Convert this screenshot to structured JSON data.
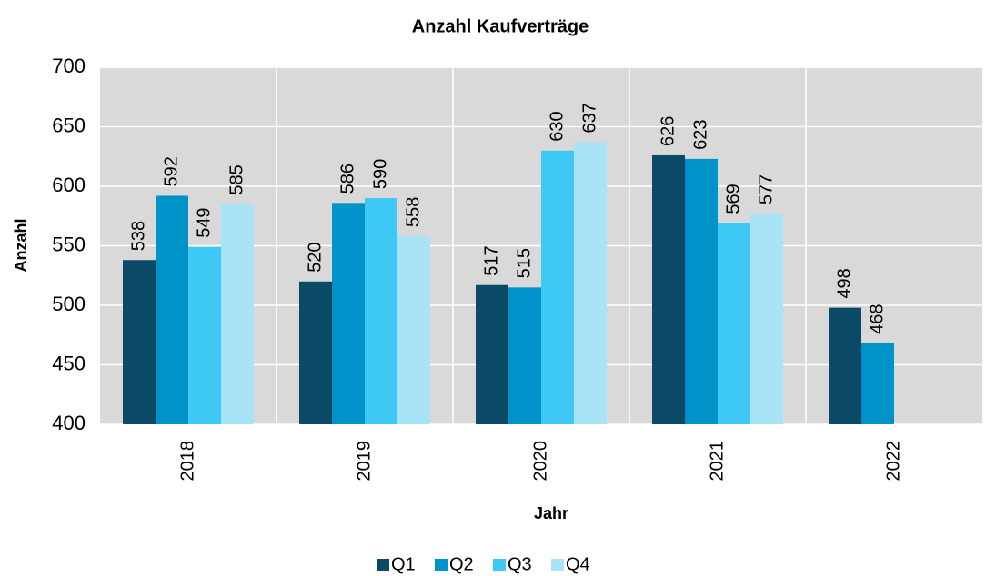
{
  "chart_data": {
    "type": "bar",
    "title": "Anzahl Kaufverträge",
    "x_label": "Jahr",
    "y_label": "Anzahl",
    "categories": [
      "2018",
      "2019",
      "2020",
      "2021",
      "2022"
    ],
    "series": [
      {
        "name": "Q1",
        "color": "#0b4a67",
        "values": [
          538,
          520,
          517,
          626,
          498
        ]
      },
      {
        "name": "Q2",
        "color": "#0093c9",
        "values": [
          592,
          586,
          515,
          623,
          468
        ]
      },
      {
        "name": "Q3",
        "color": "#3dc8f6",
        "values": [
          549,
          590,
          630,
          569,
          null
        ]
      },
      {
        "name": "Q4",
        "color": "#a8e3f8",
        "values": [
          585,
          558,
          637,
          577,
          null
        ]
      }
    ],
    "ylim": [
      400,
      700
    ],
    "yticks": [
      400,
      450,
      500,
      550,
      600,
      650,
      700
    ],
    "grid": true,
    "legend": "bottom"
  }
}
